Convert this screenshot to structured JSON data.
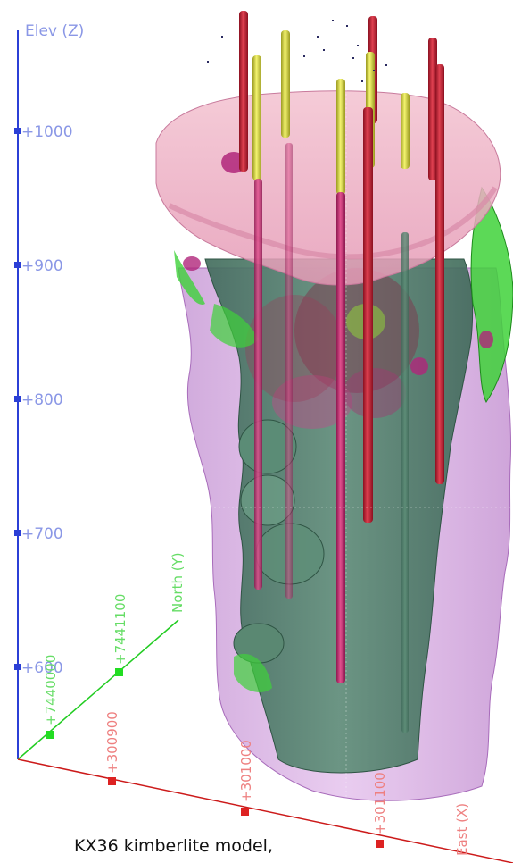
{
  "axes": {
    "z": {
      "title": "Elev (Z)",
      "ticks": [
        "+1000",
        "+900",
        "+800",
        "+700",
        "+600"
      ],
      "color": "#2b3fd6",
      "label_color": "#8a97e6"
    },
    "y": {
      "title": "North (Y)",
      "ticks": [
        "+7440000",
        "+7441100"
      ],
      "color": "#22cc22",
      "label_color": "#66dd66"
    },
    "x": {
      "title": "East (X)",
      "ticks": [
        "+300900",
        "+301000",
        "+301100"
      ],
      "color": "#cc1a1a",
      "label_color": "#ee8080"
    }
  },
  "model": {
    "colors": {
      "outer_shell": "#c88ad8",
      "cap": "#f1b4c8",
      "core": "#4f7f6a",
      "green_lobes": "#3fd23a",
      "magenta_lobes": "#b0267a",
      "drill_red": "#c42233",
      "drill_yellow": "#d8d840",
      "drill_pink": "#d23b7a"
    }
  },
  "caption": "KX36 kimberlite model,"
}
